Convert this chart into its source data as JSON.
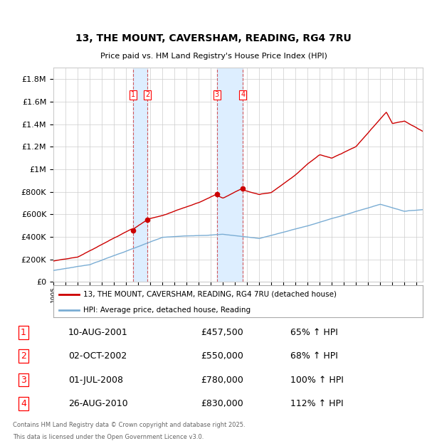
{
  "title": "13, THE MOUNT, CAVERSHAM, READING, RG4 7RU",
  "subtitle": "Price paid vs. HM Land Registry's House Price Index (HPI)",
  "ylim": [
    0,
    1900000
  ],
  "yticks": [
    0,
    200000,
    400000,
    600000,
    800000,
    1000000,
    1200000,
    1400000,
    1600000,
    1800000
  ],
  "ytick_labels": [
    "£0",
    "£200K",
    "£400K",
    "£600K",
    "£800K",
    "£1M",
    "£1.2M",
    "£1.4M",
    "£1.6M",
    "£1.8M"
  ],
  "xlim_start": 1995.0,
  "xlim_end": 2025.5,
  "sale_dates": [
    2001.61,
    2002.75,
    2008.5,
    2010.66
  ],
  "sale_prices": [
    457500,
    550000,
    780000,
    830000
  ],
  "sale_labels": [
    "1",
    "2",
    "3",
    "4"
  ],
  "transaction_info": [
    {
      "num": "1",
      "date": "10-AUG-2001",
      "price": "£457,500",
      "hpi": "65% ↑ HPI"
    },
    {
      "num": "2",
      "date": "02-OCT-2002",
      "price": "£550,000",
      "hpi": "68% ↑ HPI"
    },
    {
      "num": "3",
      "date": "01-JUL-2008",
      "price": "£780,000",
      "hpi": "100% ↑ HPI"
    },
    {
      "num": "4",
      "date": "26-AUG-2010",
      "price": "£830,000",
      "hpi": "112% ↑ HPI"
    }
  ],
  "legend_line1": "13, THE MOUNT, CAVERSHAM, READING, RG4 7RU (detached house)",
  "legend_line2": "HPI: Average price, detached house, Reading",
  "footer_line1": "Contains HM Land Registry data © Crown copyright and database right 2025.",
  "footer_line2": "This data is licensed under the Open Government Licence v3.0.",
  "red_color": "#cc0000",
  "blue_color": "#7aadd4",
  "shade_color": "#ddeeff",
  "grid_color": "#cccccc",
  "background_color": "#ffffff"
}
